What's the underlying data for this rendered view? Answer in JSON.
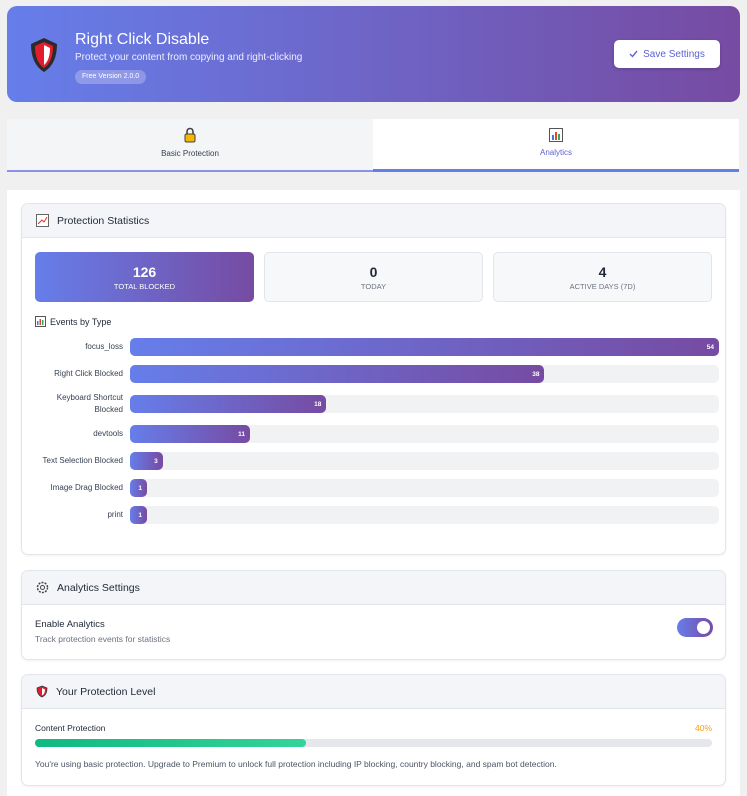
{
  "header": {
    "title": "Right Click Disable",
    "subtitle": "Protect your content from copying and right-clicking",
    "badge": "Free Version 2.0.0",
    "save_button": "Save Settings"
  },
  "tabs": [
    {
      "label": "Basic Protection",
      "active": false
    },
    {
      "label": "Analytics",
      "active": true
    }
  ],
  "statistics": {
    "title": "Protection Statistics",
    "cards": [
      {
        "value": 126,
        "label": "TOTAL BLOCKED"
      },
      {
        "value": 0,
        "label": "TODAY"
      },
      {
        "value": 4,
        "label": "ACTIVE DAYS (7D)"
      }
    ]
  },
  "chart_data": {
    "type": "bar",
    "title": "Events by Type",
    "categories": [
      "focus_loss",
      "Right Click Blocked",
      "Keyboard Shortcut Blocked",
      "devtools",
      "Text Selection Blocked",
      "Image Drag Blocked",
      "print"
    ],
    "values": [
      54,
      38,
      18,
      11,
      3,
      1,
      1
    ]
  },
  "analytics_settings": {
    "title": "Analytics Settings",
    "option_label": "Enable Analytics",
    "option_description": "Track protection events for statistics",
    "enabled": true
  },
  "protection_level": {
    "title": "Your Protection Level",
    "label": "Content Protection",
    "value": 40,
    "value_label": "40%",
    "note": "You're using basic protection. Upgrade to Premium to unlock full protection including IP blocking, country blocking, and spam bot detection."
  }
}
